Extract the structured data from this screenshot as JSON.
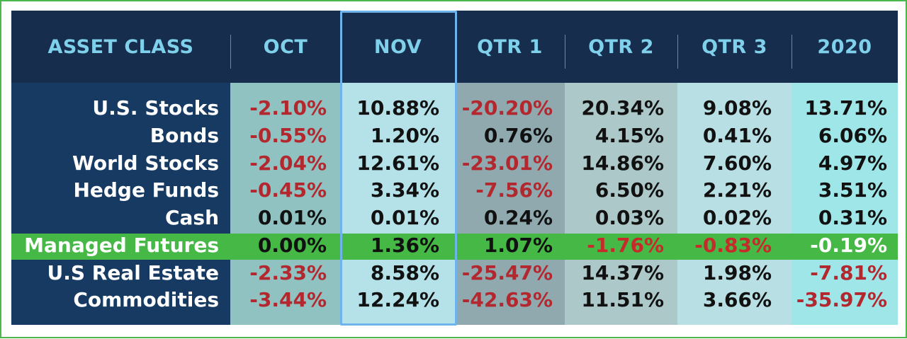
{
  "header": {
    "asset_class": "ASSET CLASS",
    "columns": [
      "OCT",
      "NOV",
      "QTR 1",
      "QTR 2",
      "QTR 3",
      "2020"
    ]
  },
  "rows": [
    {
      "label": "U.S. Stocks",
      "values": [
        "-2.10%",
        "10.88%",
        "-20.20%",
        "20.34%",
        "9.08%",
        "13.71%"
      ]
    },
    {
      "label": "Bonds",
      "values": [
        "-0.55%",
        "1.20%",
        "0.76%",
        "4.15%",
        "0.41%",
        "6.06%"
      ]
    },
    {
      "label": "World Stocks",
      "values": [
        "-2.04%",
        "12.61%",
        "-23.01%",
        "14.86%",
        "7.60%",
        "4.97%"
      ]
    },
    {
      "label": "Hedge Funds",
      "values": [
        "-0.45%",
        "3.34%",
        "-7.56%",
        "6.50%",
        "2.21%",
        "3.51%"
      ]
    },
    {
      "label": "Cash",
      "values": [
        "0.01%",
        "0.01%",
        "0.24%",
        "0.03%",
        "0.02%",
        "0.31%"
      ]
    },
    {
      "label": "Managed Futures",
      "values": [
        "0.00%",
        "1.36%",
        "1.07%",
        "-1.76%",
        "-0.83%",
        "-0.19%"
      ],
      "highlighted": true
    },
    {
      "label": "U.S Real Estate",
      "values": [
        "-2.33%",
        "8.58%",
        "-25.47%",
        "14.37%",
        "1.98%",
        "-7.81%"
      ]
    },
    {
      "label": "Commodities",
      "values": [
        "-3.44%",
        "12.24%",
        "-42.63%",
        "11.51%",
        "3.66%",
        "-35.97%"
      ]
    }
  ],
  "colors": {
    "header_text": "#7fd0ea",
    "negative": "#b3282e",
    "highlight_row": "#45b845",
    "selected_column_border": "#6fb3ec"
  },
  "selected_column": "NOV"
}
